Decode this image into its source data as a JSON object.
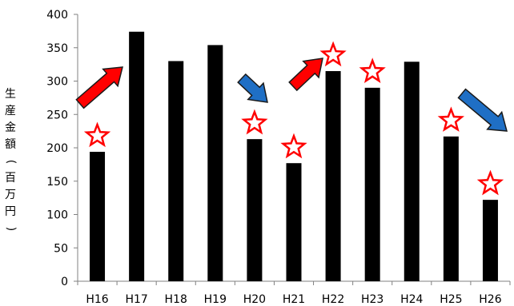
{
  "chart_data": {
    "type": "bar",
    "categories": [
      "H16",
      "H17",
      "H18",
      "H19",
      "H20",
      "H21",
      "H22",
      "H23",
      "H24",
      "H25",
      "H26"
    ],
    "values": [
      194,
      374,
      330,
      354,
      213,
      177,
      315,
      290,
      329,
      217,
      122
    ],
    "ylabel": "生産金額(百万円)",
    "ylim": [
      0,
      400
    ],
    "yticks": [
      0,
      50,
      100,
      150,
      200,
      250,
      300,
      350,
      400
    ],
    "bar_color": "#000000",
    "grid": false,
    "annotations": {
      "star_categories": [
        "H16",
        "H20",
        "H21",
        "H22",
        "H23",
        "H25",
        "H26"
      ],
      "star_color": "#ff0000",
      "arrows": [
        {
          "direction": "up",
          "color": "#ff0000",
          "near": "H16-H17"
        },
        {
          "direction": "down",
          "color": "#1f6fc5",
          "near": "H20"
        },
        {
          "direction": "up",
          "color": "#ff0000",
          "near": "H21-H22"
        },
        {
          "direction": "down",
          "color": "#1f6fc5",
          "near": "H25-H26"
        }
      ]
    }
  }
}
